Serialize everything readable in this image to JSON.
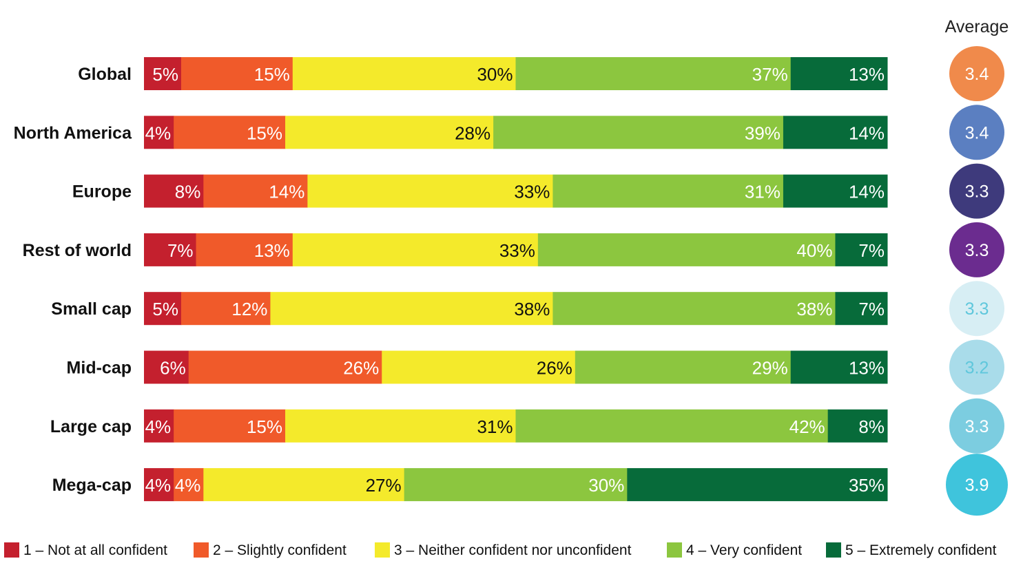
{
  "chart_data": {
    "type": "bar",
    "stacked": true,
    "orientation": "horizontal",
    "categories": [
      "Global",
      "North America",
      "Europe",
      "Rest of world",
      "Small cap",
      "Mid-cap",
      "Large cap",
      "Mega-cap"
    ],
    "series": [
      {
        "name": "1 – Not at all confident",
        "color": "#c4202e",
        "label_color": "#ffffff",
        "values": [
          5,
          4,
          8,
          7,
          5,
          6,
          4,
          4
        ]
      },
      {
        "name": "2 – Slightly confident",
        "color": "#f05a2a",
        "label_color": "#ffffff",
        "values": [
          15,
          15,
          14,
          13,
          12,
          26,
          15,
          4
        ]
      },
      {
        "name": "3 – Neither confident nor unconfident",
        "color": "#f4ea2b",
        "label_color": "#111111",
        "values": [
          30,
          28,
          33,
          33,
          38,
          26,
          31,
          27
        ]
      },
      {
        "name": "4 – Very confident",
        "color": "#8cc63f",
        "label_color": "#ffffff",
        "values": [
          37,
          39,
          31,
          40,
          38,
          29,
          42,
          30
        ]
      },
      {
        "name": "5 – Extremely confident",
        "color": "#076b3a",
        "label_color": "#ffffff",
        "values": [
          13,
          14,
          14,
          7,
          7,
          13,
          8,
          35
        ]
      }
    ],
    "value_suffix": "%",
    "xlim": [
      0,
      100
    ],
    "average": {
      "title": "Average",
      "values": [
        "3.4",
        "3.4",
        "3.3",
        "3.3",
        "3.3",
        "3.2",
        "3.3",
        "3.9"
      ],
      "colors": [
        "#f08a4b",
        "#5b7fc1",
        "#3e3a7c",
        "#6b2c8f",
        "#d7eef4",
        "#a9dcea",
        "#7ccde0",
        "#3fc4dc"
      ],
      "text_colors": [
        "#ffffff",
        "#ffffff",
        "#ffffff",
        "#ffffff",
        "#5fc7dc",
        "#5fc7dc",
        "#ffffff",
        "#ffffff"
      ]
    },
    "legend_position": "bottom",
    "grid": false
  }
}
